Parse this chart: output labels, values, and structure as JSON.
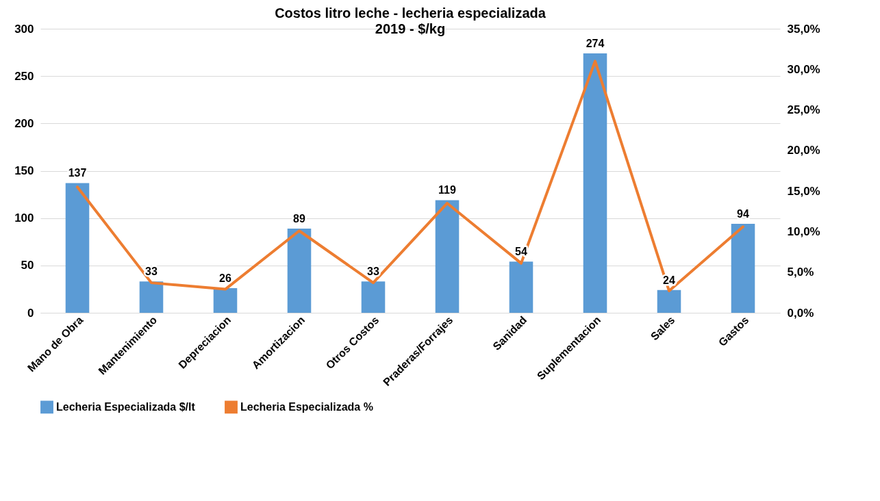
{
  "chart_data": {
    "type": "bar",
    "title": "Costos litro leche - lecheria especializada",
    "subtitle": "2019 - $/kg",
    "categories": [
      "Mano de Obra",
      "Mantenimiento",
      "Depreciacion",
      "Amortizacion",
      "Otros Costos",
      "Praderas/Forrajes",
      "Sanidad",
      "Suplementacion",
      "Sales",
      "Gastos"
    ],
    "series": [
      {
        "name": "Lecheria Especializada $/lt",
        "color": "#5b9bd5",
        "values": [
          137,
          33,
          26,
          89,
          33,
          119,
          54,
          274,
          24,
          94
        ],
        "value_labels": [
          "137",
          "33",
          "26",
          "89",
          "33",
          "119",
          "54",
          "274",
          "24",
          "94"
        ]
      },
      {
        "name": "Lecheria Especializada %",
        "type": "line",
        "axis": "y2",
        "color": "#ed7d31",
        "values": [
          15.5,
          3.7,
          2.9,
          10.1,
          3.7,
          13.5,
          6.1,
          31.0,
          2.7,
          10.6
        ]
      }
    ],
    "ylim": [
      0,
      300
    ],
    "yticks": [
      0,
      50,
      100,
      150,
      200,
      250,
      300
    ],
    "y2lim": [
      0,
      35
    ],
    "y2ticks": [
      {
        "value": 0,
        "label": "0,0%"
      },
      {
        "value": 5,
        "label": "5,0%"
      },
      {
        "value": 10,
        "label": "10,0%"
      },
      {
        "value": 15,
        "label": "15,0%"
      },
      {
        "value": 20,
        "label": "20,0%"
      },
      {
        "value": 25,
        "label": "25,0%"
      },
      {
        "value": 30,
        "label": "30,0%"
      },
      {
        "value": 35,
        "label": "35,0%"
      }
    ],
    "grid": "y",
    "legend": "bottom"
  }
}
